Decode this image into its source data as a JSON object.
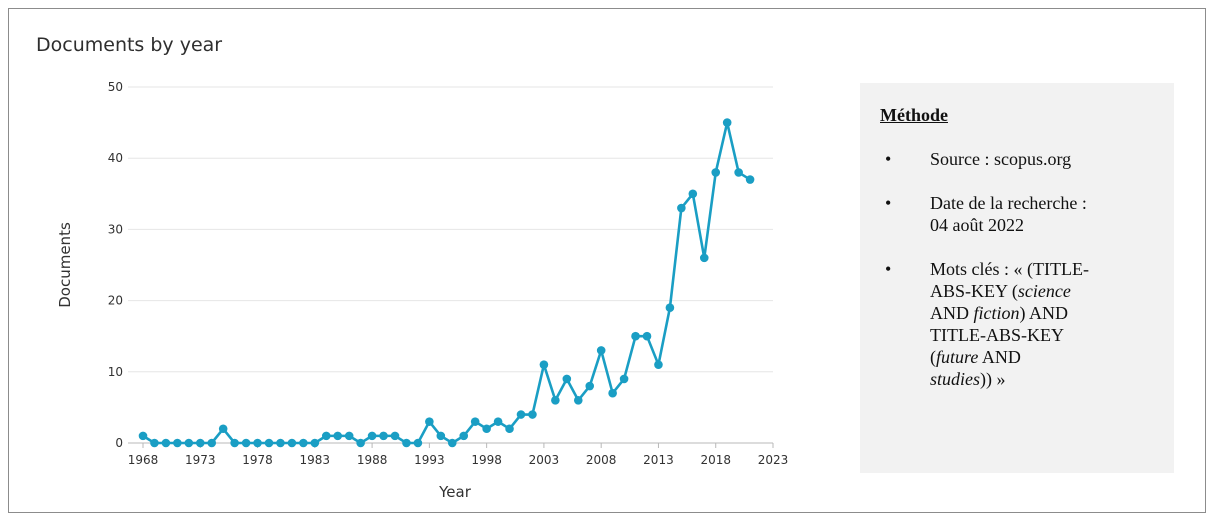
{
  "chart_data": {
    "type": "line",
    "title": "Documents by year",
    "xlabel": "Year",
    "ylabel": "Documents",
    "xlim": [
      1968,
      2023
    ],
    "ylim": [
      0,
      50
    ],
    "x_ticks": [
      "1968",
      "1973",
      "1978",
      "1983",
      "1988",
      "1993",
      "1998",
      "2003",
      "2008",
      "2013",
      "2018",
      "2023"
    ],
    "y_ticks": [
      "0",
      "10",
      "20",
      "30",
      "40",
      "50"
    ],
    "grid": "horizontal",
    "series": [
      {
        "color": "#1a9ec4",
        "x": [
          1968,
          1969,
          1970,
          1971,
          1972,
          1973,
          1974,
          1975,
          1976,
          1977,
          1978,
          1979,
          1980,
          1981,
          1982,
          1983,
          1984,
          1985,
          1986,
          1987,
          1988,
          1989,
          1990,
          1991,
          1992,
          1993,
          1994,
          1995,
          1996,
          1997,
          1998,
          1999,
          2000,
          2001,
          2002,
          2003,
          2004,
          2005,
          2006,
          2007,
          2008,
          2009,
          2010,
          2011,
          2012,
          2013,
          2014,
          2015,
          2016,
          2017,
          2018,
          2019,
          2020,
          2021
        ],
        "values": [
          1,
          0,
          0,
          0,
          0,
          0,
          0,
          2,
          0,
          0,
          0,
          0,
          0,
          0,
          0,
          0,
          1,
          1,
          1,
          0,
          1,
          1,
          1,
          0,
          0,
          3,
          1,
          0,
          1,
          3,
          2,
          3,
          2,
          4,
          4,
          11,
          6,
          9,
          6,
          8,
          13,
          7,
          9,
          15,
          15,
          11,
          19,
          33,
          35,
          26,
          38,
          45,
          38,
          37
        ]
      }
    ]
  },
  "method_box": {
    "title": "Méthode",
    "items": {
      "source": "Source : scopus.org",
      "date_line1": "Date de la recherche :",
      "date_line2": "04 août 2022",
      "keys_line1": "Mots clés : « (TITLE-",
      "keys_line2": "ABS-KEY (",
      "keys_italic1": "science",
      "keys_line3": "AND ",
      "keys_italic2": "fiction",
      "keys_line3b": ") AND",
      "keys_line4": "TITLE-ABS-KEY",
      "keys_line5a": "(",
      "keys_italic3": "future",
      "keys_line5b": " AND",
      "keys_italic4": "studies",
      "keys_line6b": ")) »"
    }
  }
}
